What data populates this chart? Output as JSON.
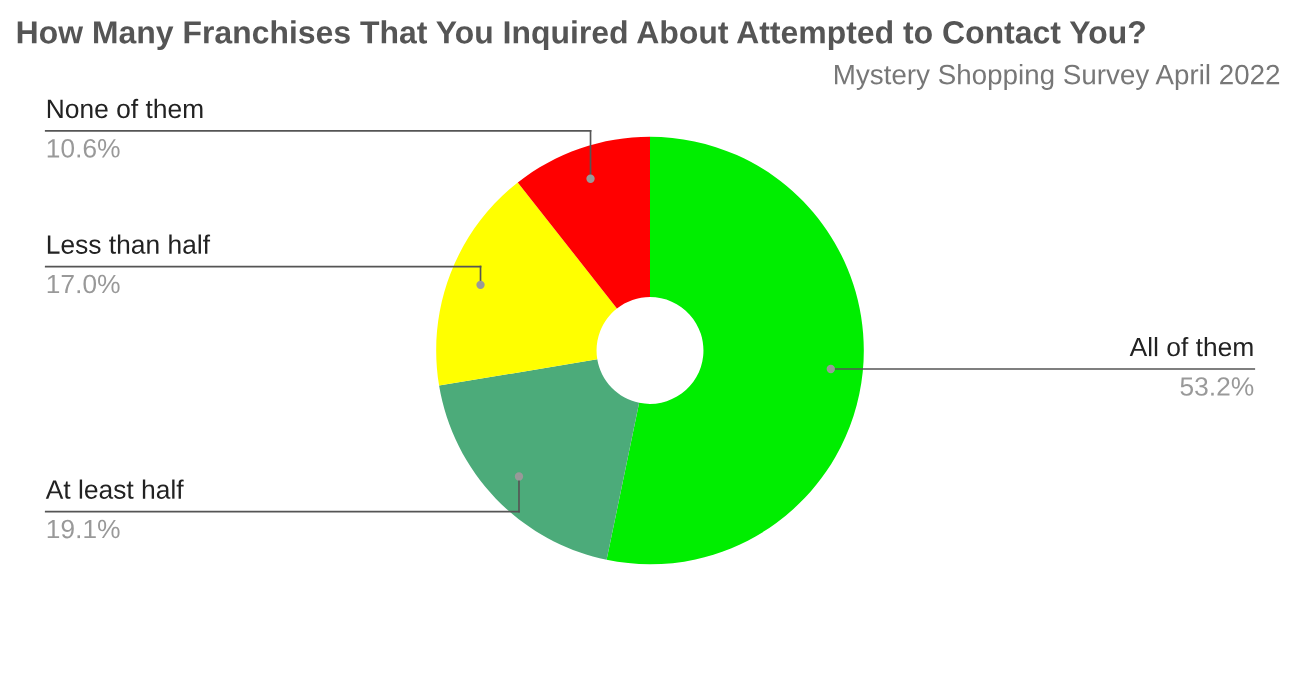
{
  "chart_data": {
    "type": "donut",
    "title": "How Many Franchises That You Inquired About Attempted to Contact You?",
    "subtitle": "Mystery Shopping Survey April 2022",
    "categories": [
      "All of them",
      "At least half",
      "Less than half",
      "None of them"
    ],
    "values": [
      53.2,
      19.1,
      17.0,
      10.6
    ],
    "value_labels": [
      "53.2%",
      "19.1%",
      "17.0%",
      "10.6%"
    ],
    "colors": [
      "#00ee00",
      "#4cab7a",
      "#ffff00",
      "#ff0000"
    ],
    "legend": false
  }
}
